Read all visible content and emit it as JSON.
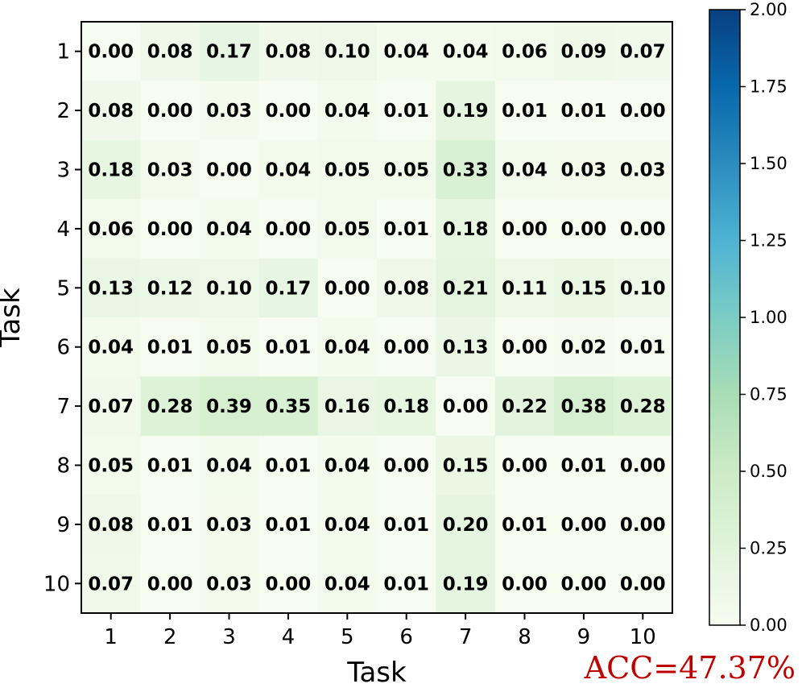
{
  "chart_data": {
    "type": "heatmap",
    "xlabel": "Task",
    "ylabel": "Task",
    "x_categories": [
      "1",
      "2",
      "3",
      "4",
      "5",
      "6",
      "7",
      "8",
      "9",
      "10"
    ],
    "y_categories": [
      "1",
      "2",
      "3",
      "4",
      "5",
      "6",
      "7",
      "8",
      "9",
      "10"
    ],
    "values": [
      [
        0.0,
        0.08,
        0.17,
        0.08,
        0.1,
        0.04,
        0.04,
        0.06,
        0.09,
        0.07
      ],
      [
        0.08,
        0.0,
        0.03,
        0.0,
        0.04,
        0.01,
        0.19,
        0.01,
        0.01,
        0.0
      ],
      [
        0.18,
        0.03,
        0.0,
        0.04,
        0.05,
        0.05,
        0.33,
        0.04,
        0.03,
        0.03
      ],
      [
        0.06,
        0.0,
        0.04,
        0.0,
        0.05,
        0.01,
        0.18,
        0.0,
        0.0,
        0.0
      ],
      [
        0.13,
        0.12,
        0.1,
        0.17,
        0.0,
        0.08,
        0.21,
        0.11,
        0.15,
        0.1
      ],
      [
        0.04,
        0.01,
        0.05,
        0.01,
        0.04,
        0.0,
        0.13,
        0.0,
        0.02,
        0.01
      ],
      [
        0.07,
        0.28,
        0.39,
        0.35,
        0.16,
        0.18,
        0.0,
        0.22,
        0.38,
        0.28
      ],
      [
        0.05,
        0.01,
        0.04,
        0.01,
        0.04,
        0.0,
        0.15,
        0.0,
        0.01,
        0.0
      ],
      [
        0.08,
        0.01,
        0.03,
        0.01,
        0.04,
        0.01,
        0.2,
        0.01,
        0.0,
        0.0
      ],
      [
        0.07,
        0.0,
        0.03,
        0.0,
        0.04,
        0.01,
        0.19,
        0.0,
        0.0,
        0.0
      ]
    ],
    "colorbar": {
      "range": [
        0,
        2
      ],
      "ticks": [
        "0.00",
        "0.25",
        "0.50",
        "0.75",
        "1.00",
        "1.25",
        "1.50",
        "1.75",
        "2.00"
      ],
      "colormap": [
        "#f7fcf0",
        "#e0f3db",
        "#ccebc5",
        "#a8ddb5",
        "#7bccc4",
        "#4eb3d3",
        "#2b8cbe",
        "#0868ac",
        "#084081"
      ]
    },
    "annotation": "ACC=47.37%",
    "annotation_color": "#c00000"
  }
}
